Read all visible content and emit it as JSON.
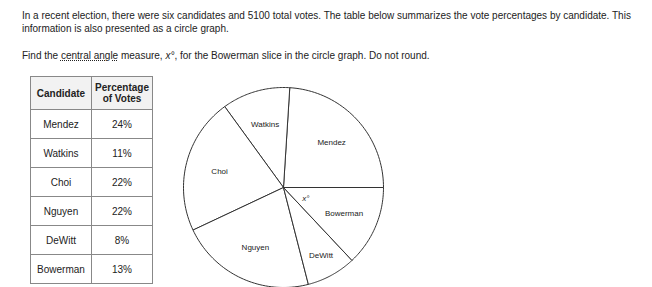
{
  "problem": {
    "intro": "In a recent election, there were six candidates and 5100 total votes. The table below summarizes the vote percentages by candidate. This information is also presented as a circle graph.",
    "question": [
      "Find the ",
      "central angle",
      " measure, ",
      "x°",
      ", for the Bowerman slice in the circle graph. Do not round."
    ]
  },
  "table": {
    "header": [
      "Candidate",
      "Percentage of Votes"
    ],
    "rows": [
      [
        "Mendez",
        "24%"
      ],
      [
        "Watkins",
        "11%"
      ],
      [
        "Choi",
        "22%"
      ],
      [
        "Nguyen",
        "22%"
      ],
      [
        "DeWitt",
        "8%"
      ],
      [
        "Bowerman",
        "13%"
      ]
    ]
  },
  "chart_data": {
    "type": "pie",
    "categories": [
      "Mendez",
      "Watkins",
      "Choi",
      "Nguyen",
      "DeWitt",
      "Bowerman"
    ],
    "values": [
      24,
      11,
      22,
      22,
      8,
      13
    ],
    "color": "#ffffff",
    "annotations": [
      "x°"
    ]
  }
}
